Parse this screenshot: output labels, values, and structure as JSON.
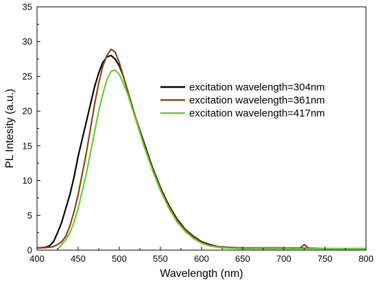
{
  "chart_data": {
    "type": "line",
    "title": "",
    "xlabel": "Wavelength (nm)",
    "ylabel": "PL Intesity (a.u.)",
    "xlim": [
      400,
      800
    ],
    "ylim": [
      0,
      35
    ],
    "x_ticks": [
      "400",
      "450",
      "500",
      "550",
      "600",
      "650",
      "700",
      "750",
      "800"
    ],
    "y_ticks": [
      "0",
      "5",
      "10",
      "15",
      "20",
      "25",
      "30",
      "35"
    ],
    "grid": false,
    "legend_position": "right",
    "series": [
      {
        "name": "excitation wavelength=304nm",
        "color": "#000000",
        "x": [
          400,
          410,
          415,
          420,
          425,
          430,
          435,
          440,
          445,
          450,
          455,
          460,
          465,
          470,
          475,
          480,
          485,
          490,
          495,
          500,
          505,
          510,
          520,
          530,
          540,
          550,
          560,
          570,
          580,
          590,
          600,
          610,
          620,
          630,
          650,
          700,
          750,
          800
        ],
        "y": [
          0.3,
          0.4,
          0.6,
          1.2,
          2.5,
          4.0,
          6.0,
          8.0,
          10.5,
          13.5,
          16.0,
          18.5,
          21.0,
          23.5,
          25.5,
          27.0,
          27.8,
          28.0,
          27.5,
          26.5,
          25.0,
          23.0,
          19.0,
          15.5,
          12.0,
          9.0,
          6.5,
          4.5,
          3.0,
          2.0,
          1.2,
          0.8,
          0.5,
          0.4,
          0.3,
          0.3,
          0.2,
          0.2
        ]
      },
      {
        "name": "excitation wavelength=361nm",
        "color": "#8b4513",
        "x": [
          400,
          410,
          415,
          420,
          425,
          430,
          435,
          440,
          445,
          450,
          455,
          460,
          465,
          470,
          475,
          480,
          485,
          490,
          495,
          500,
          505,
          510,
          520,
          530,
          540,
          550,
          560,
          570,
          580,
          590,
          600,
          610,
          620,
          630,
          650,
          700,
          720,
          725,
          730,
          750,
          800
        ],
        "y": [
          0.3,
          0.35,
          0.4,
          0.5,
          0.8,
          1.2,
          2.0,
          3.5,
          5.5,
          8.0,
          11.0,
          14.0,
          17.5,
          21.0,
          24.0,
          26.5,
          28.0,
          28.9,
          28.5,
          27.0,
          25.0,
          23.0,
          19.0,
          15.2,
          11.8,
          8.8,
          6.3,
          4.3,
          2.9,
          1.9,
          1.1,
          0.7,
          0.5,
          0.4,
          0.3,
          0.3,
          0.3,
          0.8,
          0.3,
          0.2,
          0.2
        ]
      },
      {
        "name": "excitation wavelength=417nm",
        "color": "#66cc33",
        "x": [
          425,
          428,
          430,
          435,
          440,
          445,
          450,
          455,
          460,
          465,
          470,
          475,
          480,
          485,
          490,
          495,
          500,
          505,
          510,
          520,
          530,
          540,
          550,
          560,
          570,
          580,
          590,
          600,
          610,
          620,
          630,
          650,
          700,
          750,
          800
        ],
        "y": [
          0.2,
          0.5,
          0.8,
          1.5,
          2.5,
          4.0,
          6.0,
          8.5,
          11.0,
          14.0,
          17.0,
          20.0,
          22.5,
          24.5,
          25.7,
          25.9,
          25.3,
          24.0,
          22.5,
          18.8,
          15.0,
          11.6,
          8.6,
          6.1,
          4.1,
          2.7,
          1.7,
          1.0,
          0.6,
          0.4,
          0.3,
          0.2,
          0.2,
          0.2,
          0.2
        ]
      }
    ]
  }
}
